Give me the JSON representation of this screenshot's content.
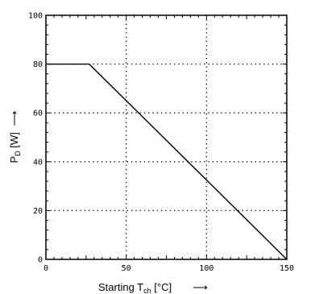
{
  "chart_data": {
    "type": "line",
    "xlabel": {
      "main": "Starting T",
      "sub": "ch",
      "unit": " [°C]",
      "arrow": "⟶"
    },
    "ylabel": {
      "main": "P",
      "sub": "D",
      "unit": " [W]",
      "arrow": "⟶"
    },
    "xlim": [
      0,
      150
    ],
    "ylim": [
      0,
      100
    ],
    "x_ticks": [
      0,
      50,
      100,
      150
    ],
    "y_ticks": [
      0,
      20,
      40,
      60,
      80,
      100
    ],
    "grid": true,
    "grid_style": "dotted",
    "series": [
      {
        "x": [
          0,
          27,
          150
        ],
        "y": [
          80,
          80,
          0
        ],
        "color": "#000000"
      }
    ]
  }
}
